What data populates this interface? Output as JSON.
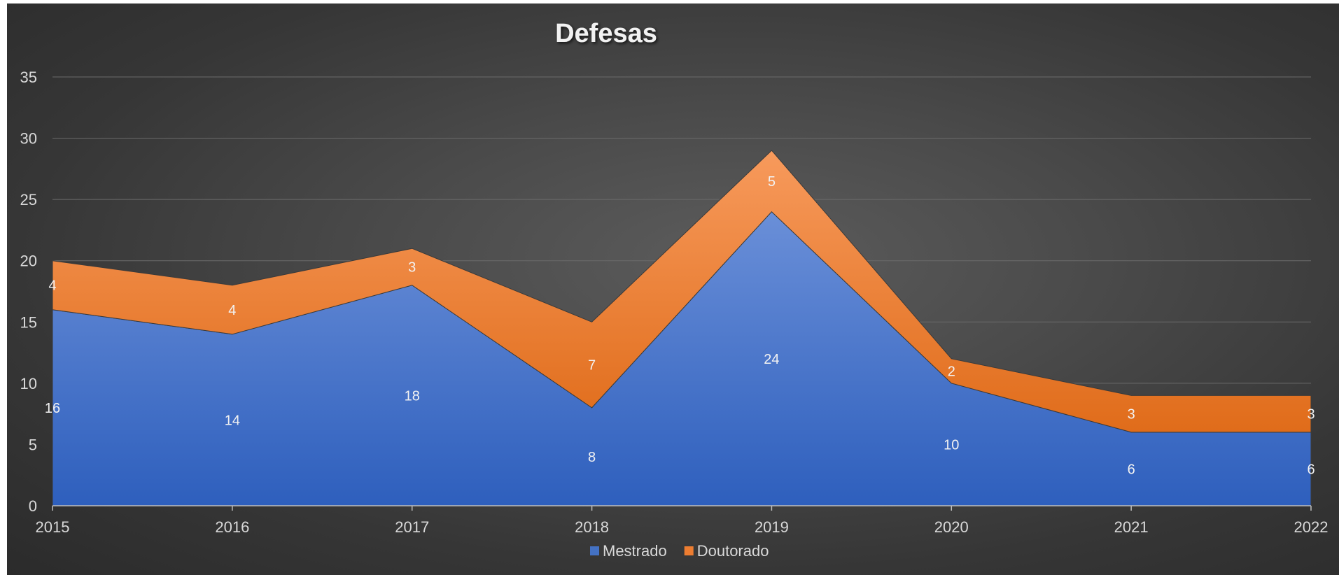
{
  "chart_data": {
    "type": "area",
    "stacked": true,
    "title": "Defesas",
    "categories": [
      "2015",
      "2016",
      "2017",
      "2018",
      "2019",
      "2020",
      "2021",
      "2022"
    ],
    "series": [
      {
        "name": "Mestrado",
        "values": [
          16,
          14,
          18,
          8,
          24,
          10,
          6,
          6
        ],
        "color": "#4472c4"
      },
      {
        "name": "Doutorado",
        "values": [
          4,
          4,
          3,
          7,
          5,
          2,
          3,
          3
        ],
        "color": "#ed7d31"
      }
    ],
    "ylim": [
      0,
      35
    ],
    "yticks": [
      "0",
      "5",
      "10",
      "15",
      "20",
      "25",
      "30",
      "35"
    ],
    "grid": true,
    "data_labels": true,
    "legend": "bottom"
  }
}
